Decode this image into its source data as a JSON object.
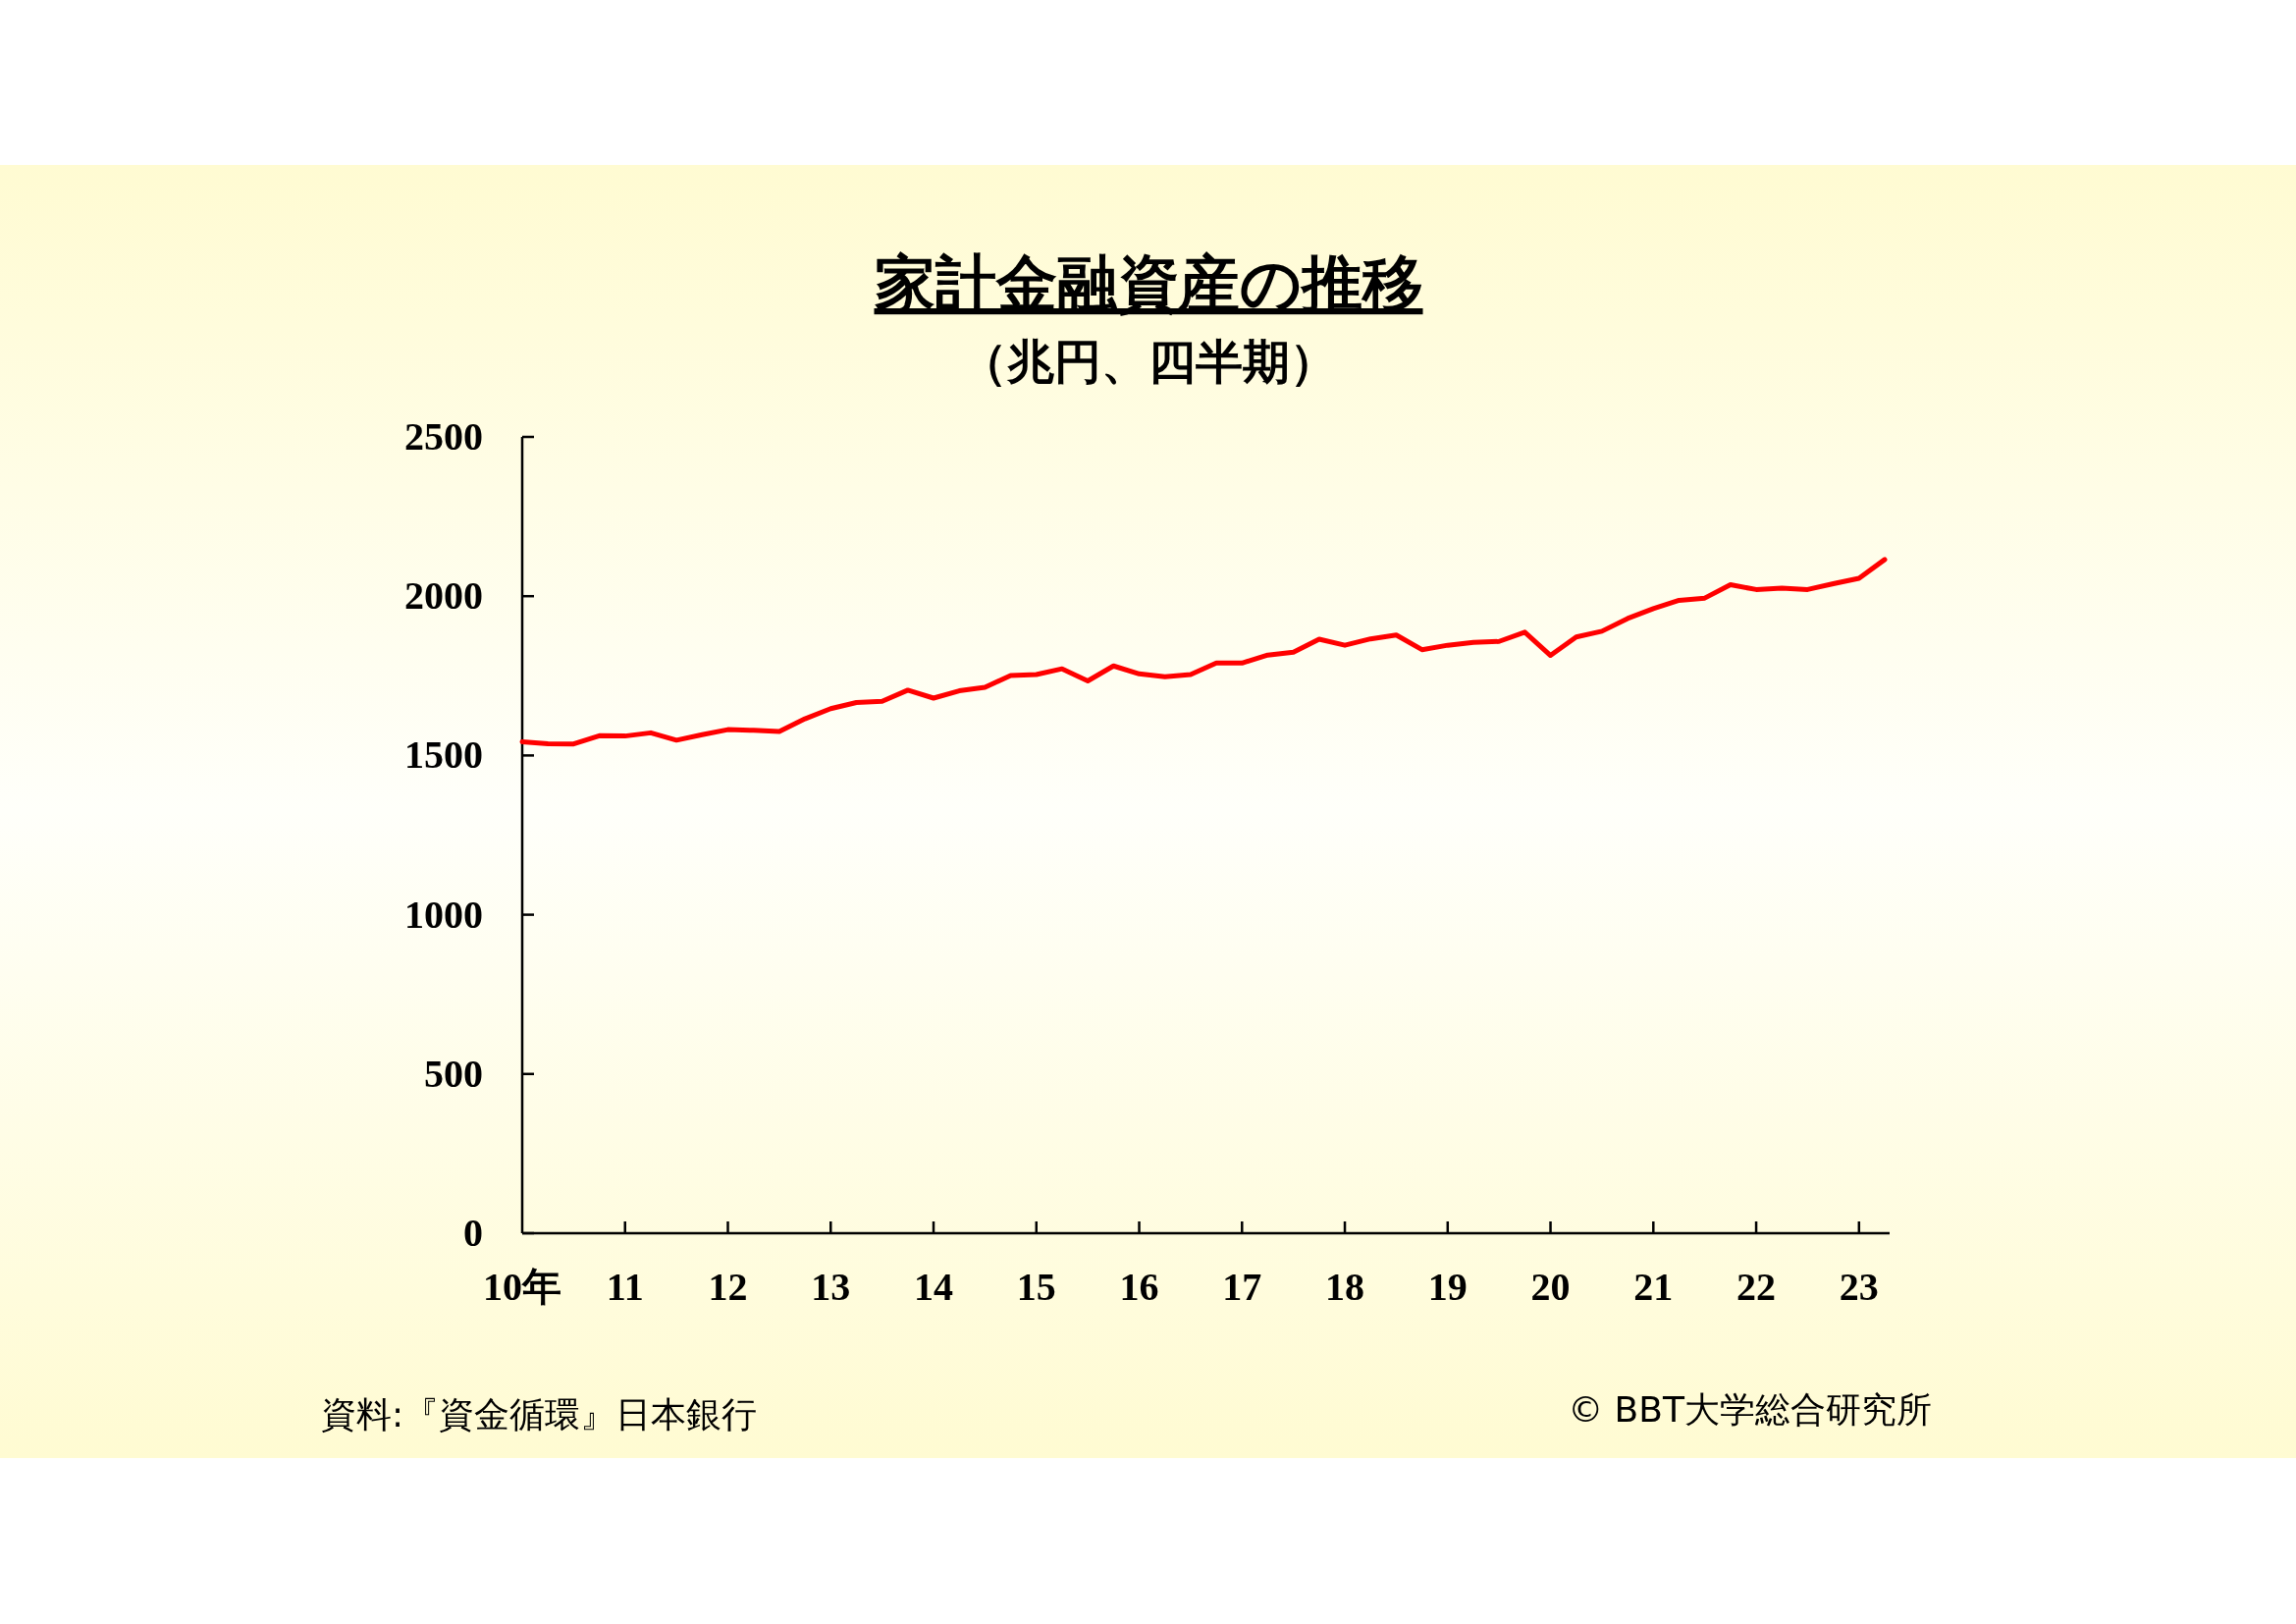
{
  "chart_data": {
    "type": "line",
    "title": "家計金融資産の推移",
    "subtitle": "（兆円、四半期）",
    "categories": [
      "10年",
      null,
      null,
      null,
      "11",
      null,
      null,
      null,
      "12",
      null,
      null,
      null,
      "13",
      null,
      null,
      null,
      "14",
      null,
      null,
      null,
      "15",
      null,
      null,
      null,
      "16",
      null,
      null,
      null,
      "17",
      null,
      null,
      null,
      "18",
      null,
      null,
      null,
      "19",
      null,
      null,
      null,
      "20",
      null,
      null,
      null,
      "21",
      null,
      null,
      null,
      "22",
      null,
      null,
      null,
      "23",
      null
    ],
    "series": [
      {
        "color": "#ff0000",
        "values": [
          1543,
          1537,
          1536,
          1562,
          1561,
          1571,
          1548,
          1565,
          1581,
          1579,
          1575,
          1615,
          1647,
          1666,
          1670,
          1705,
          1680,
          1703,
          1714,
          1751,
          1754,
          1772,
          1734,
          1781,
          1756,
          1747,
          1754,
          1790,
          1790,
          1815,
          1824,
          1865,
          1846,
          1866,
          1878,
          1832,
          1846,
          1855,
          1858,
          1887,
          1814,
          1872,
          1890,
          1930,
          1961,
          1987,
          1994,
          2036,
          2021,
          2025,
          2021,
          2039,
          2056,
          2115
        ]
      }
    ],
    "ylim": [
      0,
      2500
    ],
    "yticks": [
      0,
      500,
      1000,
      1500,
      2000,
      2500
    ],
    "annotations": [
      "資料:『資金循環』日本銀行",
      "© BBT大学総合研究所"
    ]
  }
}
